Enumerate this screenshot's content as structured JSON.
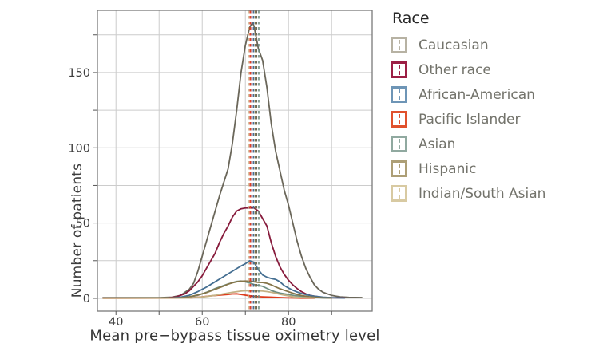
{
  "chart_data": {
    "type": "line",
    "title": "",
    "xlabel": "Mean pre−bypass tissue oximetry level",
    "ylabel": "Number of patients",
    "xlim": [
      35.7,
      99.4
    ],
    "ylim": [
      -8.5,
      191.3
    ],
    "x_gridlines": [
      40,
      50,
      60,
      70,
      80,
      90
    ],
    "x_ticks_labeled": [
      40,
      60,
      80
    ],
    "y_gridlines": [
      0,
      25,
      50,
      75,
      100,
      125,
      150,
      175
    ],
    "y_ticks_labeled": [
      0,
      50,
      100,
      150
    ],
    "grid": true,
    "legend_title": "Race",
    "legend_position": "right",
    "colors": {
      "gridline": "#cccccc",
      "plot_border": "#7a7a7a",
      "tick": "#555555",
      "tick_label": "#3d3d3d"
    },
    "series": [
      {
        "name": "Caucasian",
        "swatch_color": "#b7b2a3",
        "line_color": "#6b675a",
        "mean": 72.6,
        "points": [
          [
            37,
            0.4
          ],
          [
            50,
            0.4
          ],
          [
            53,
            0.8
          ],
          [
            55,
            2
          ],
          [
            57,
            6
          ],
          [
            58,
            10
          ],
          [
            59,
            18
          ],
          [
            60,
            28
          ],
          [
            61,
            38
          ],
          [
            62,
            48
          ],
          [
            63,
            58
          ],
          [
            64,
            68
          ],
          [
            65,
            77
          ],
          [
            66,
            86
          ],
          [
            67,
            103
          ],
          [
            68,
            125
          ],
          [
            69,
            150
          ],
          [
            70,
            168
          ],
          [
            71,
            180
          ],
          [
            71.6,
            183
          ],
          [
            72,
            181
          ],
          [
            73,
            166
          ],
          [
            74,
            158
          ],
          [
            75,
            140
          ],
          [
            76,
            116
          ],
          [
            77,
            98
          ],
          [
            78,
            85
          ],
          [
            79,
            72
          ],
          [
            80,
            62
          ],
          [
            81,
            50
          ],
          [
            82,
            38
          ],
          [
            83,
            28
          ],
          [
            84,
            20
          ],
          [
            85,
            14
          ],
          [
            86,
            9
          ],
          [
            87,
            6
          ],
          [
            88,
            4
          ],
          [
            89,
            3
          ],
          [
            90,
            2
          ],
          [
            91,
            1.4
          ],
          [
            92,
            1
          ],
          [
            94,
            0.6
          ],
          [
            97,
            0.5
          ]
        ]
      },
      {
        "name": "Other race",
        "swatch_color": "#9c1f45",
        "line_color": "#871b3c",
        "mean": 71.5,
        "points": [
          [
            37,
            0.3
          ],
          [
            52,
            0.3
          ],
          [
            54,
            1
          ],
          [
            56,
            3
          ],
          [
            57,
            5
          ],
          [
            58,
            8
          ],
          [
            59,
            11
          ],
          [
            60,
            15
          ],
          [
            61,
            20
          ],
          [
            62,
            25
          ],
          [
            63,
            30
          ],
          [
            64,
            37
          ],
          [
            65,
            43
          ],
          [
            66,
            48
          ],
          [
            67,
            54
          ],
          [
            68,
            58
          ],
          [
            69,
            59.5
          ],
          [
            70,
            60
          ],
          [
            72,
            60
          ],
          [
            73,
            58
          ],
          [
            74,
            53
          ],
          [
            75,
            48
          ],
          [
            76,
            37
          ],
          [
            77,
            28
          ],
          [
            78,
            21
          ],
          [
            79,
            16
          ],
          [
            80,
            12
          ],
          [
            81,
            9
          ],
          [
            82,
            6.5
          ],
          [
            83,
            4.5
          ],
          [
            84,
            3
          ],
          [
            85,
            2
          ],
          [
            86,
            1.4
          ],
          [
            88,
            0.6
          ],
          [
            90,
            0.4
          ],
          [
            93,
            0.3
          ]
        ]
      },
      {
        "name": "African-American",
        "swatch_color": "#6e95b6",
        "line_color": "#456f92",
        "mean": 71.9,
        "points": [
          [
            37,
            0.2
          ],
          [
            53,
            0.3
          ],
          [
            55,
            0.8
          ],
          [
            57,
            2
          ],
          [
            59,
            4.5
          ],
          [
            61,
            7.5
          ],
          [
            63,
            11
          ],
          [
            65,
            14.5
          ],
          [
            67,
            18
          ],
          [
            69,
            21.5
          ],
          [
            70,
            23
          ],
          [
            71,
            25
          ],
          [
            72,
            24
          ],
          [
            73,
            19
          ],
          [
            74,
            15.5
          ],
          [
            75,
            14
          ],
          [
            76,
            13.2
          ],
          [
            77,
            12.6
          ],
          [
            78,
            11
          ],
          [
            79,
            8.5
          ],
          [
            80,
            6.8
          ],
          [
            81,
            5.4
          ],
          [
            82,
            4.2
          ],
          [
            83,
            3.2
          ],
          [
            84,
            2.5
          ],
          [
            85,
            1.9
          ],
          [
            86,
            1.4
          ],
          [
            88,
            0.8
          ],
          [
            90,
            0.4
          ],
          [
            93,
            0.2
          ]
        ]
      },
      {
        "name": "Pacific Islander",
        "swatch_color": "#e0512d",
        "line_color": "#dd3b1c",
        "mean": 71.1,
        "points": [
          [
            37,
            0.1
          ],
          [
            57,
            0.2
          ],
          [
            59,
            0.7
          ],
          [
            60,
            1
          ],
          [
            62,
            1.6
          ],
          [
            64,
            2.1
          ],
          [
            66,
            2.6
          ],
          [
            67,
            2.9
          ],
          [
            68,
            3
          ],
          [
            69,
            2.6
          ],
          [
            70,
            2.1
          ],
          [
            71,
            1.7
          ],
          [
            72,
            1.3
          ],
          [
            73,
            1.1
          ],
          [
            74,
            1
          ],
          [
            76,
            0.8
          ],
          [
            78,
            0.5
          ],
          [
            80,
            0.3
          ],
          [
            83,
            0.15
          ],
          [
            86,
            0.1
          ]
        ]
      },
      {
        "name": "Asian",
        "swatch_color": "#90a9a0",
        "line_color": "#6f8f82",
        "mean": 73.1,
        "points": [
          [
            37,
            0.2
          ],
          [
            55,
            0.3
          ],
          [
            57,
            0.9
          ],
          [
            59,
            2
          ],
          [
            61,
            4
          ],
          [
            63,
            6.5
          ],
          [
            65,
            8.5
          ],
          [
            66,
            9.5
          ],
          [
            67,
            10.4
          ],
          [
            68,
            11.2
          ],
          [
            69,
            11.5
          ],
          [
            70,
            11
          ],
          [
            71,
            10.2
          ],
          [
            72,
            9.2
          ],
          [
            73,
            8.6
          ],
          [
            74,
            8
          ],
          [
            75,
            6.6
          ],
          [
            76,
            5.2
          ],
          [
            77,
            4.2
          ],
          [
            78,
            3.5
          ],
          [
            79,
            3
          ],
          [
            80,
            2.5
          ],
          [
            81,
            2
          ],
          [
            82,
            1.6
          ],
          [
            84,
            1
          ],
          [
            86,
            0.5
          ],
          [
            88,
            0.3
          ],
          [
            90,
            0.2
          ]
        ]
      },
      {
        "name": "Hispanic",
        "swatch_color": "#ad9f76",
        "line_color": "#857549",
        "mean": 72.3,
        "points": [
          [
            37,
            0.2
          ],
          [
            55,
            0.3
          ],
          [
            57,
            1
          ],
          [
            59,
            2.2
          ],
          [
            61,
            3.8
          ],
          [
            63,
            6
          ],
          [
            65,
            8.2
          ],
          [
            66,
            9.4
          ],
          [
            67,
            10.3
          ],
          [
            68,
            11
          ],
          [
            69,
            11.4
          ],
          [
            70,
            11.5
          ],
          [
            71,
            11.4
          ],
          [
            72,
            11
          ],
          [
            73,
            10.6
          ],
          [
            74,
            10.5
          ],
          [
            75,
            10
          ],
          [
            76,
            9
          ],
          [
            77,
            7.6
          ],
          [
            78,
            6.4
          ],
          [
            79,
            5.4
          ],
          [
            80,
            4.4
          ],
          [
            81,
            3.4
          ],
          [
            82,
            2.6
          ],
          [
            83,
            1.9
          ],
          [
            84,
            1.4
          ],
          [
            85,
            1
          ],
          [
            86,
            0.7
          ],
          [
            88,
            0.3
          ],
          [
            90,
            0.2
          ]
        ]
      },
      {
        "name": "Indian/South Asian",
        "swatch_color": "#d8caa2",
        "line_color": "#c4b185",
        "mean": 70.7,
        "points": [
          [
            37,
            0.1
          ],
          [
            57,
            0.2
          ],
          [
            59,
            0.6
          ],
          [
            61,
            1.2
          ],
          [
            63,
            2
          ],
          [
            65,
            3
          ],
          [
            67,
            4
          ],
          [
            69,
            4.8
          ],
          [
            70,
            5
          ],
          [
            72,
            5.1
          ],
          [
            73,
            5
          ],
          [
            74,
            4.8
          ],
          [
            75,
            4.5
          ],
          [
            76,
            4
          ],
          [
            77,
            3.4
          ],
          [
            78,
            2.7
          ],
          [
            79,
            2.1
          ],
          [
            80,
            1.6
          ],
          [
            81,
            1.1
          ],
          [
            82,
            0.8
          ],
          [
            83,
            0.5
          ],
          [
            84,
            0.4
          ],
          [
            86,
            0.2
          ]
        ]
      }
    ]
  }
}
